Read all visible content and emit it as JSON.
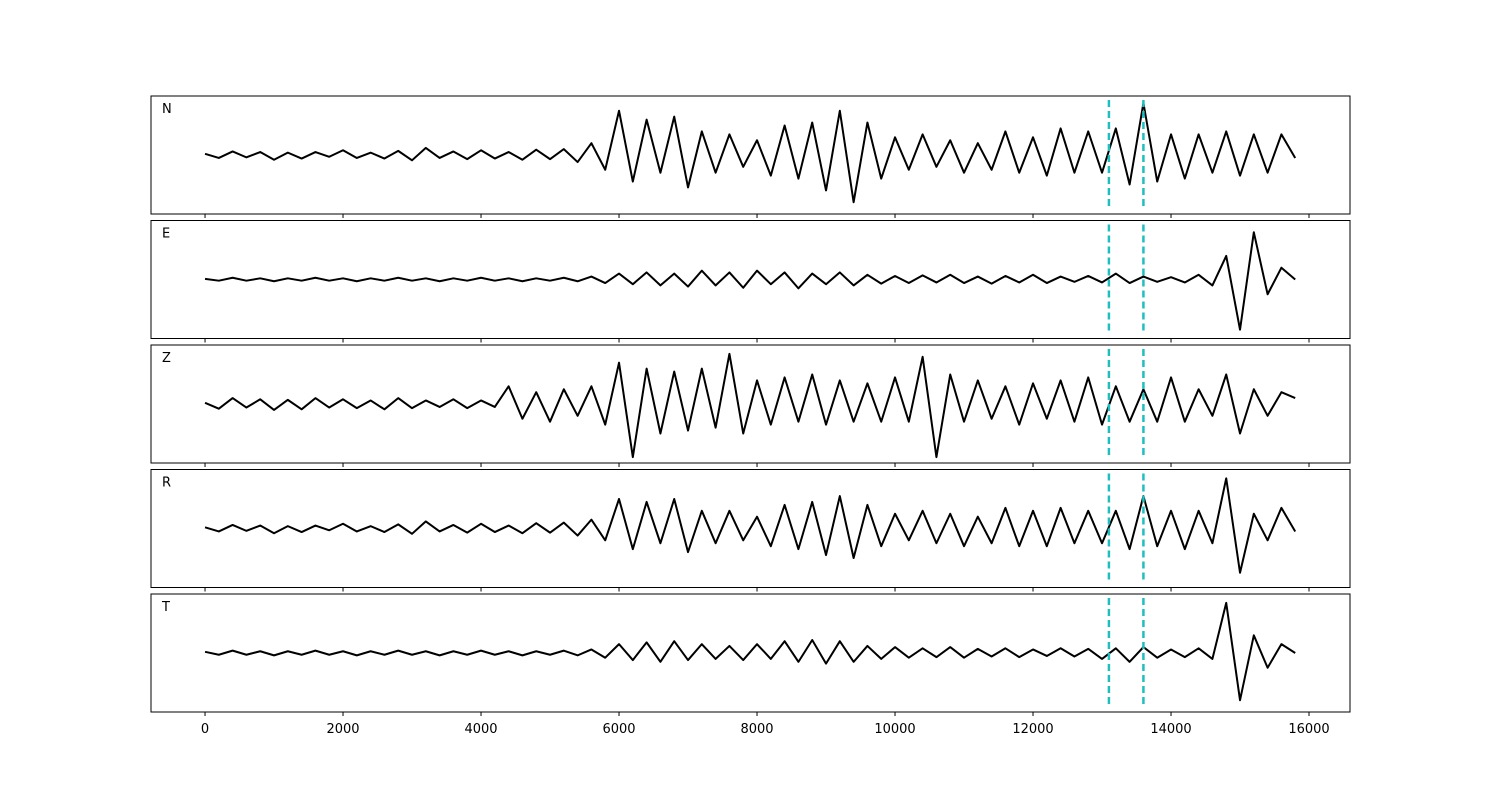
{
  "chart_data": {
    "type": "line",
    "x": [
      0,
      200,
      400,
      600,
      800,
      1000,
      1200,
      1400,
      1600,
      1800,
      2000,
      2200,
      2400,
      2600,
      2800,
      3000,
      3200,
      3400,
      3600,
      3800,
      4000,
      4200,
      4400,
      4600,
      4800,
      5000,
      5200,
      5400,
      5600,
      5800,
      6000,
      6200,
      6400,
      6600,
      6800,
      7000,
      7200,
      7400,
      7600,
      7800,
      8000,
      8200,
      8400,
      8600,
      8800,
      9000,
      9200,
      9400,
      9600,
      9800,
      10000,
      10200,
      10400,
      10600,
      10800,
      11000,
      11200,
      11400,
      11600,
      11800,
      12000,
      12200,
      12400,
      12600,
      12800,
      13000,
      13200,
      13400,
      13600,
      13800,
      14000,
      14200,
      14400,
      14600,
      14800,
      15000,
      15200,
      15400,
      15600,
      15800
    ],
    "xlim": [
      -783,
      16594
    ],
    "xticks": [
      0,
      2000,
      4000,
      6000,
      8000,
      10000,
      12000,
      14000,
      16000
    ],
    "ylim": [
      -1,
      1
    ],
    "vlines": [
      13100,
      13600
    ],
    "vline_color": "#1fbfbf",
    "series": [
      {
        "name": "N",
        "color": "#000000",
        "values": [
          0.02,
          -0.05,
          0.06,
          -0.04,
          0.05,
          -0.08,
          0.04,
          -0.06,
          0.05,
          -0.03,
          0.08,
          -0.05,
          0.04,
          -0.06,
          0.07,
          -0.09,
          0.12,
          -0.05,
          0.06,
          -0.07,
          0.08,
          -0.06,
          0.05,
          -0.08,
          0.09,
          -0.07,
          0.1,
          -0.12,
          0.2,
          -0.25,
          0.75,
          -0.45,
          0.6,
          -0.3,
          0.65,
          -0.55,
          0.4,
          -0.3,
          0.35,
          -0.2,
          0.25,
          -0.35,
          0.5,
          -0.4,
          0.55,
          -0.6,
          0.75,
          -0.8,
          0.55,
          -0.4,
          0.3,
          -0.25,
          0.35,
          -0.2,
          0.25,
          -0.3,
          0.2,
          -0.25,
          0.4,
          -0.3,
          0.3,
          -0.35,
          0.45,
          -0.3,
          0.4,
          -0.3,
          0.45,
          -0.5,
          0.88,
          -0.45,
          0.35,
          -0.4,
          0.35,
          -0.3,
          0.4,
          -0.35,
          0.35,
          -0.3,
          0.35,
          -0.05
        ]
      },
      {
        "name": "E",
        "color": "#000000",
        "values": [
          0.01,
          -0.02,
          0.03,
          -0.02,
          0.02,
          -0.03,
          0.02,
          -0.02,
          0.03,
          -0.02,
          0.02,
          -0.03,
          0.02,
          -0.02,
          0.03,
          -0.02,
          0.02,
          -0.03,
          0.02,
          -0.02,
          0.03,
          -0.02,
          0.02,
          -0.03,
          0.02,
          -0.02,
          0.03,
          -0.03,
          0.05,
          -0.06,
          0.1,
          -0.08,
          0.12,
          -0.1,
          0.1,
          -0.12,
          0.15,
          -0.1,
          0.12,
          -0.14,
          0.15,
          -0.08,
          0.12,
          -0.15,
          0.1,
          -0.08,
          0.12,
          -0.1,
          0.08,
          -0.07,
          0.06,
          -0.06,
          0.07,
          -0.05,
          0.08,
          -0.06,
          0.05,
          -0.07,
          0.06,
          -0.05,
          0.08,
          -0.06,
          0.05,
          -0.04,
          0.06,
          -0.05,
          0.1,
          -0.06,
          0.05,
          -0.04,
          0.04,
          -0.05,
          0.08,
          -0.1,
          0.4,
          -0.85,
          0.8,
          -0.25,
          0.2,
          0.0
        ]
      },
      {
        "name": "Z",
        "color": "#000000",
        "values": [
          0.02,
          -0.08,
          0.1,
          -0.06,
          0.08,
          -0.1,
          0.07,
          -0.09,
          0.1,
          -0.06,
          0.08,
          -0.07,
          0.06,
          -0.09,
          0.1,
          -0.07,
          0.06,
          -0.05,
          0.08,
          -0.07,
          0.06,
          -0.05,
          0.3,
          -0.25,
          0.2,
          -0.3,
          0.25,
          -0.2,
          0.3,
          -0.35,
          0.7,
          -0.9,
          0.6,
          -0.5,
          0.55,
          -0.45,
          0.6,
          -0.4,
          0.85,
          -0.5,
          0.4,
          -0.35,
          0.45,
          -0.3,
          0.5,
          -0.35,
          0.4,
          -0.3,
          0.35,
          -0.3,
          0.45,
          -0.3,
          0.8,
          -0.9,
          0.5,
          -0.3,
          0.4,
          -0.25,
          0.3,
          -0.35,
          0.35,
          -0.25,
          0.4,
          -0.3,
          0.45,
          -0.35,
          0.3,
          -0.3,
          0.25,
          -0.3,
          0.45,
          -0.3,
          0.25,
          -0.2,
          0.5,
          -0.5,
          0.25,
          -0.2,
          0.2,
          0.1
        ]
      },
      {
        "name": "R",
        "color": "#000000",
        "values": [
          0.02,
          -0.05,
          0.06,
          -0.04,
          0.05,
          -0.08,
          0.04,
          -0.06,
          0.05,
          -0.03,
          0.08,
          -0.05,
          0.04,
          -0.06,
          0.07,
          -0.09,
          0.12,
          -0.05,
          0.06,
          -0.07,
          0.08,
          -0.06,
          0.05,
          -0.08,
          0.09,
          -0.07,
          0.1,
          -0.12,
          0.15,
          -0.2,
          0.5,
          -0.35,
          0.45,
          -0.25,
          0.5,
          -0.4,
          0.3,
          -0.25,
          0.3,
          -0.2,
          0.2,
          -0.3,
          0.4,
          -0.35,
          0.45,
          -0.45,
          0.55,
          -0.5,
          0.4,
          -0.3,
          0.25,
          -0.2,
          0.3,
          -0.25,
          0.25,
          -0.3,
          0.2,
          -0.25,
          0.35,
          -0.3,
          0.3,
          -0.3,
          0.35,
          -0.25,
          0.3,
          -0.25,
          0.3,
          -0.35,
          0.55,
          -0.3,
          0.3,
          -0.35,
          0.3,
          -0.25,
          0.85,
          -0.75,
          0.25,
          -0.2,
          0.35,
          -0.05
        ]
      },
      {
        "name": "T",
        "color": "#000000",
        "values": [
          0.02,
          -0.03,
          0.04,
          -0.03,
          0.03,
          -0.04,
          0.03,
          -0.03,
          0.04,
          -0.03,
          0.03,
          -0.04,
          0.03,
          -0.03,
          0.04,
          -0.03,
          0.03,
          -0.04,
          0.03,
          -0.03,
          0.04,
          -0.03,
          0.03,
          -0.04,
          0.03,
          -0.03,
          0.04,
          -0.04,
          0.06,
          -0.08,
          0.15,
          -0.12,
          0.18,
          -0.15,
          0.2,
          -0.12,
          0.15,
          -0.1,
          0.12,
          -0.12,
          0.15,
          -0.1,
          0.2,
          -0.15,
          0.22,
          -0.18,
          0.2,
          -0.15,
          0.12,
          -0.1,
          0.1,
          -0.08,
          0.08,
          -0.07,
          0.1,
          -0.08,
          0.07,
          -0.06,
          0.08,
          -0.07,
          0.06,
          -0.05,
          0.08,
          -0.06,
          0.07,
          -0.1,
          0.08,
          -0.15,
          0.1,
          -0.08,
          0.06,
          -0.07,
          0.08,
          -0.1,
          0.85,
          -0.8,
          0.3,
          -0.25,
          0.15,
          0.0
        ]
      }
    ]
  }
}
